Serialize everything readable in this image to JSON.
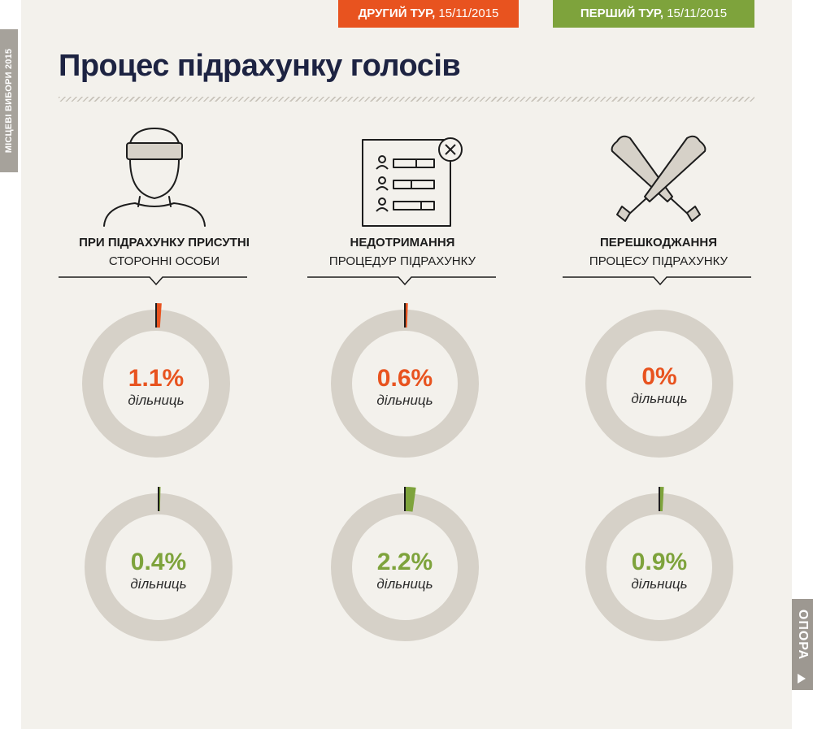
{
  "side_label": "МІСЦЕВІ ВИБОРИ 2015",
  "tabs": {
    "second": {
      "name": "ДРУГИЙ ТУР,",
      "date": "15/11/2015",
      "color": "#e8531f"
    },
    "first": {
      "name": "ПЕРШИЙ ТУР,",
      "date": "15/11/2015",
      "color": "#7ea33c"
    }
  },
  "title": "Процес підрахунку голосів",
  "logo": "ОПОРА",
  "columns": [
    {
      "icon": "masked-person-icon",
      "line1": "ПРИ ПІДРАХУНКУ ПРИСУТНІ",
      "line2": "СТОРОННІ ОСОБИ"
    },
    {
      "icon": "ballot-cancel-icon",
      "line1": "НЕДОТРИМАННЯ",
      "line2": "ПРОЦЕДУР ПІДРАХУНКУ"
    },
    {
      "icon": "crossed-bats-icon",
      "line1": "ПЕРЕШКОДЖАННЯ",
      "line2": "ПРОЦЕСУ ПІДРАХУНКУ"
    }
  ],
  "chart_data": {
    "type": "pie",
    "unit": "дільниць",
    "categories": [
      "ПРИ ПІДРАХУНКУ ПРИСУТНІ СТОРОННІ ОСОБИ",
      "НЕДОТРИМАННЯ ПРОЦЕДУР ПІДРАХУНКУ",
      "ПЕРЕШКОДЖАННЯ ПРОЦЕСУ ПІДРАХУНКУ"
    ],
    "series": [
      {
        "name": "ДРУГИЙ ТУР, 15/11/2015",
        "color": "#e8531f",
        "values": [
          1.1,
          0.6,
          0
        ],
        "labels": [
          "1.1%",
          "0.6%",
          "0%"
        ]
      },
      {
        "name": "ПЕРШИЙ ТУР, 15/11/2015",
        "color": "#7ea33c",
        "values": [
          0.4,
          2.2,
          0.9
        ],
        "labels": [
          "0.4%",
          "2.2%",
          "0.9%"
        ]
      }
    ],
    "max": 100,
    "track_color": "#d6d1c8"
  }
}
